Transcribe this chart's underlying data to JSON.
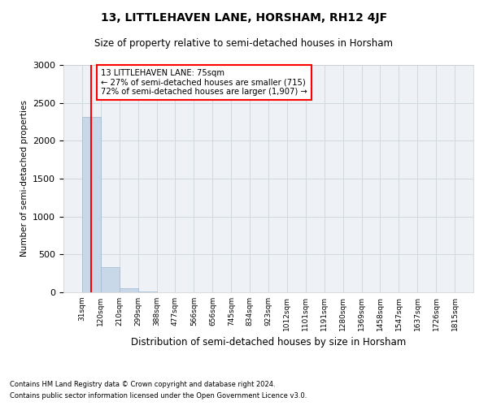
{
  "title": "13, LITTLEHAVEN LANE, HORSHAM, RH12 4JF",
  "subtitle": "Size of property relative to semi-detached houses in Horsham",
  "xlabel": "Distribution of semi-detached houses by size in Horsham",
  "ylabel": "Number of semi-detached properties",
  "footnote1": "Contains HM Land Registry data © Crown copyright and database right 2024.",
  "footnote2": "Contains public sector information licensed under the Open Government Licence v3.0.",
  "bin_edges": [
    31,
    120,
    210,
    299,
    388,
    477,
    566,
    656,
    745,
    834,
    923,
    1012,
    1101,
    1191,
    1280,
    1369,
    1458,
    1547,
    1637,
    1726,
    1815
  ],
  "bar_values": [
    2310,
    330,
    50,
    10,
    5,
    3,
    2,
    1,
    1,
    0,
    0,
    0,
    0,
    0,
    0,
    0,
    0,
    0,
    0,
    0
  ],
  "bar_color": "#c8d8e8",
  "bar_edge_color": "#a0b8d0",
  "property_size": 75,
  "smaller_pct": 27,
  "smaller_count": 715,
  "larger_pct": 72,
  "larger_count": 1907,
  "annotation_line_color": "red",
  "ylim": [
    0,
    3000
  ],
  "yticks": [
    0,
    500,
    1000,
    1500,
    2000,
    2500,
    3000
  ],
  "grid_color": "#d0d8e0",
  "bg_color": "#eef2f6"
}
